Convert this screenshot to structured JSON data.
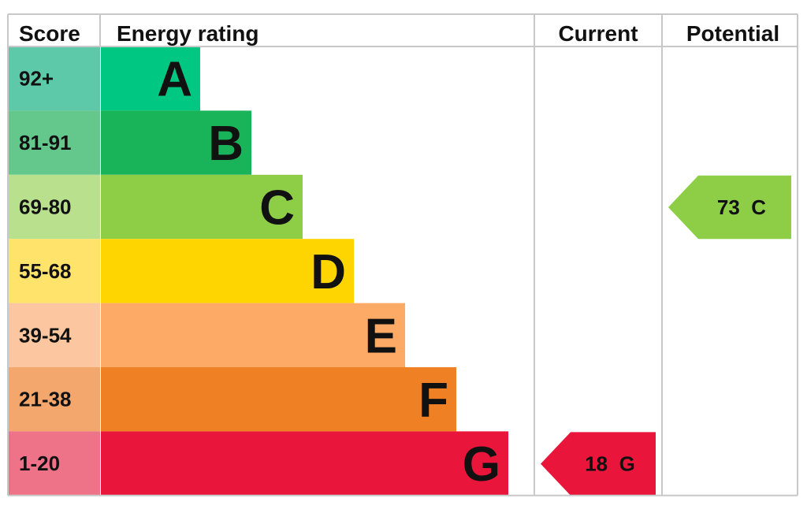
{
  "chart_data": {
    "type": "bar",
    "headers": {
      "score": "Score",
      "energy_rating": "Energy rating",
      "current": "Current",
      "potential": "Potential"
    },
    "bands": [
      {
        "letter": "A",
        "score_range": "92+",
        "color": "#00c781",
        "score_color": "#5ec9a8"
      },
      {
        "letter": "B",
        "score_range": "81-91",
        "color": "#19b459",
        "score_color": "#64c88c"
      },
      {
        "letter": "C",
        "score_range": "69-80",
        "color": "#8dce46",
        "score_color": "#b9e08d"
      },
      {
        "letter": "D",
        "score_range": "55-68",
        "color": "#ffd500",
        "score_color": "#ffe36a"
      },
      {
        "letter": "E",
        "score_range": "39-54",
        "color": "#fcaa65",
        "score_color": "#fcc7a0"
      },
      {
        "letter": "F",
        "score_range": "21-38",
        "color": "#ef8023",
        "score_color": "#f3a76c"
      },
      {
        "letter": "G",
        "score_range": "1-20",
        "color": "#e9153b",
        "score_color": "#ef7388"
      }
    ],
    "current": {
      "score": 18,
      "letter": "G",
      "label": "18  G",
      "color": "#e9153b"
    },
    "potential": {
      "score": 73,
      "letter": "C",
      "label": "73  C",
      "color": "#8dce46"
    }
  }
}
